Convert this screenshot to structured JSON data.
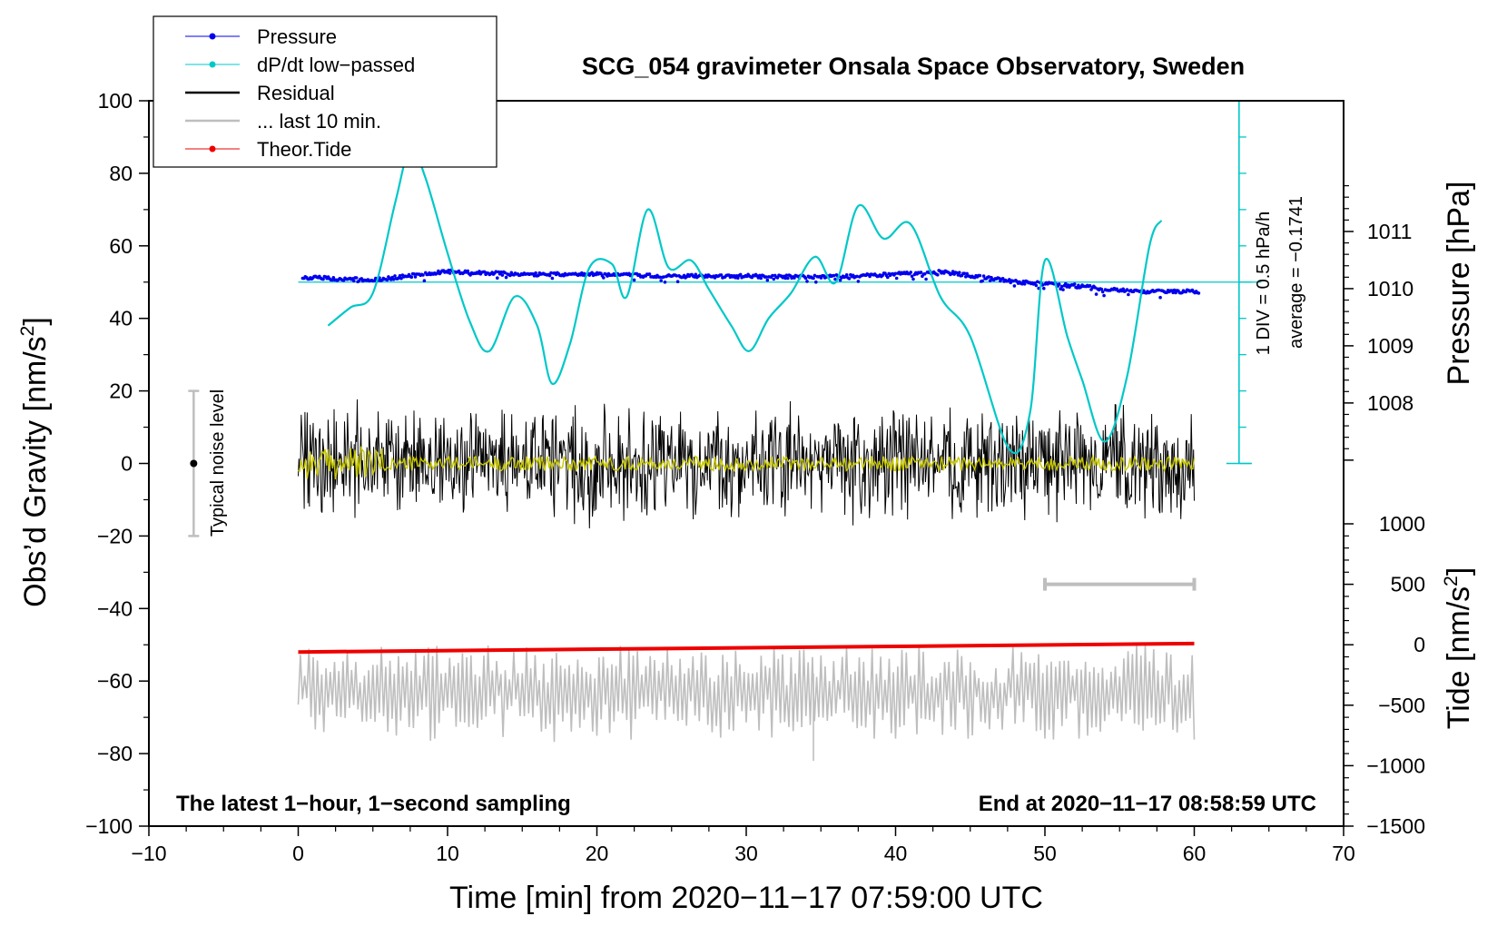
{
  "chart_data": {
    "type": "line",
    "title": "SCG_054 gravimeter Onsala Space Observatory, Sweden",
    "xlabel": "Time [min] from 2020−11−17 07:59:00 UTC",
    "ylabel_left_main": "Obs’d Gravity [nm/s",
    "ylabel_left_sup": "2",
    "ylabel_left_close": "]",
    "ylabel_right_pressure": "Pressure [hPa]",
    "ylabel_right_tide_main": "Tide [nm/s",
    "ylabel_right_tide_sup": "2",
    "ylabel_right_tide_close": "]",
    "xlim": [
      -10,
      70
    ],
    "ylim": [
      -100,
      100
    ],
    "x_ticks": [
      {
        "value": -10,
        "label": "−10"
      },
      {
        "value": 0,
        "label": "0"
      },
      {
        "value": 10,
        "label": "10"
      },
      {
        "value": 20,
        "label": "20"
      },
      {
        "value": 30,
        "label": "30"
      },
      {
        "value": 40,
        "label": "40"
      },
      {
        "value": 50,
        "label": "50"
      },
      {
        "value": 60,
        "label": "60"
      },
      {
        "value": 70,
        "label": "70"
      }
    ],
    "y_ticks": [
      {
        "value": 100,
        "label": "100"
      },
      {
        "value": 80,
        "label": "80"
      },
      {
        "value": 60,
        "label": "60"
      },
      {
        "value": 40,
        "label": "40"
      },
      {
        "value": 20,
        "label": "20"
      },
      {
        "value": 0,
        "label": "0"
      },
      {
        "value": -20,
        "label": "−20"
      },
      {
        "value": -40,
        "label": "−40"
      },
      {
        "value": -60,
        "label": "−60"
      },
      {
        "value": -80,
        "label": "−80"
      },
      {
        "value": -100,
        "label": "−100"
      }
    ],
    "pressure_axis": {
      "range_hpa": [
        1006.95,
        1012
      ],
      "ticks": [
        {
          "value": 1011,
          "label": "1011"
        },
        {
          "value": 1010,
          "label": "1010"
        },
        {
          "value": 1009,
          "label": "1009"
        },
        {
          "value": 1008,
          "label": "1008"
        }
      ]
    },
    "tide_axis": {
      "range_nm_s2": [
        -1500,
        1000
      ],
      "ticks": [
        {
          "value": 1000,
          "label": "1000"
        },
        {
          "value": 500,
          "label": "500"
        },
        {
          "value": 0,
          "label": "0"
        },
        {
          "value": -500,
          "label": "−500"
        },
        {
          "value": -1000,
          "label": "−1000"
        },
        {
          "value": -1500,
          "label": "−1500"
        }
      ]
    },
    "legend": {
      "placement": "top-left",
      "items": [
        {
          "label": "Pressure",
          "color": "#0000ee",
          "style": "line-dot"
        },
        {
          "label": "dP/dt low−passed",
          "color": "#00c8c8",
          "style": "line-dot"
        },
        {
          "label": "Residual",
          "color": "#000000",
          "style": "line"
        },
        {
          "label": "... last 10 min.",
          "color": "#bebebe",
          "style": "line"
        },
        {
          "label": "Theor.Tide",
          "color": "#ee0000",
          "style": "line-dot"
        }
      ]
    },
    "annotations": {
      "noise_label": "Typical noise level",
      "noise_range": [
        -20,
        20
      ],
      "noise_x": -7,
      "dpdt_scale": "1 DIV = 0.5 hPa/h",
      "dpdt_average": "average = −0.1741",
      "bottom_left": "The latest 1−hour, 1−second sampling",
      "bottom_right": "End at 2020−11−17 08:58:59 UTC",
      "last10_range_min": [
        50,
        60
      ]
    },
    "series": [
      {
        "name": "Pressure",
        "units": "hPa",
        "color": "#0000ee",
        "x": [
          0,
          5,
          10,
          15,
          20,
          25,
          30,
          35,
          40,
          43,
          48,
          52,
          56,
          60
        ],
        "y": [
          1010.2,
          1010.15,
          1010.3,
          1010.25,
          1010.25,
          1010.22,
          1010.22,
          1010.2,
          1010.25,
          1010.3,
          1010.12,
          1010.05,
          1009.95,
          1009.95
        ]
      },
      {
        "name": "dP/dt low−passed",
        "units": "gravity-axis units",
        "color": "#00c8c8",
        "reference_line_y": 50,
        "x": [
          2,
          3.5,
          5,
          6.5,
          7.5,
          8.5,
          10,
          11.5,
          12.8,
          14.5,
          16,
          17,
          18.2,
          19.5,
          21,
          22,
          23.4,
          24.8,
          26.3,
          27.5,
          29,
          30.2,
          31.5,
          33,
          34.6,
          36,
          37.5,
          39.2,
          41,
          43,
          45,
          47.6,
          49,
          50,
          51.5,
          52.5,
          54,
          55.5,
          57,
          57.8
        ],
        "y": [
          38,
          43,
          47,
          72,
          87,
          79,
          58,
          39,
          31,
          46,
          38,
          22,
          33,
          54,
          55,
          46,
          70,
          54,
          56,
          48,
          38,
          31,
          40,
          47,
          57,
          50,
          71,
          62,
          66,
          46,
          35,
          4,
          14,
          56,
          35,
          23,
          6,
          24,
          60,
          67
        ]
      },
      {
        "name": "Residual",
        "units": "nm/s²",
        "color": "#000000",
        "x_range": [
          0,
          60
        ],
        "typical_amplitude": 12,
        "peak_y": [
          21,
          -23
        ]
      },
      {
        "name": "Residual smoothed",
        "units": "nm/s²",
        "color": "#c8c800",
        "x_range": [
          0,
          60
        ],
        "typical_amplitude": 2
      },
      {
        "name": "... last 10 min.",
        "units": "nm/s² (offset)",
        "color": "#bebebe",
        "x_range": [
          0,
          60
        ],
        "center_y": -63,
        "typical_amplitude": 9,
        "peak_y": [
          -43,
          -82
        ]
      },
      {
        "name": "Theor.Tide",
        "units": "nm/s²",
        "color": "#ee0000",
        "x": [
          0,
          60
        ],
        "y": [
          -60,
          10
        ]
      }
    ]
  }
}
